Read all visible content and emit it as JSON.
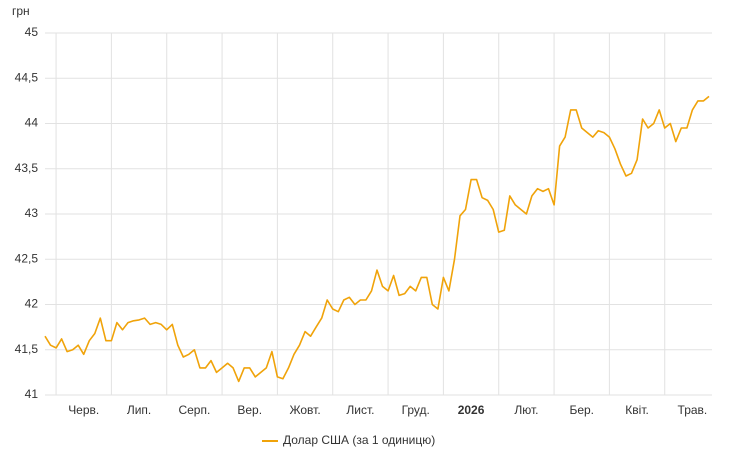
{
  "chart_data": {
    "type": "line",
    "y_label": "грн",
    "categories": [
      null,
      null,
      null,
      null,
      null,
      null,
      null,
      "Черв.",
      null,
      null,
      null,
      null,
      null,
      null,
      null,
      null,
      null,
      "Лип.",
      null,
      null,
      null,
      null,
      null,
      null,
      null,
      null,
      null,
      "Серп.",
      null,
      null,
      null,
      null,
      null,
      null,
      null,
      null,
      null,
      "Вер.",
      null,
      null,
      null,
      null,
      null,
      null,
      null,
      null,
      null,
      "Жовт.",
      null,
      null,
      null,
      null,
      null,
      null,
      null,
      null,
      null,
      "Лист.",
      null,
      null,
      null,
      null,
      null,
      null,
      null,
      null,
      null,
      "Груд.",
      null,
      null,
      null,
      null,
      null,
      null,
      null,
      null,
      null,
      "2026",
      null,
      null,
      null,
      null,
      null,
      null,
      null,
      null,
      null,
      "Лют.",
      null,
      null,
      null,
      null,
      null,
      null,
      null,
      null,
      null,
      "Бер.",
      null,
      null,
      null,
      null,
      null,
      null,
      null,
      null,
      null,
      "Квіт.",
      null,
      null,
      null,
      null,
      null,
      null,
      null,
      null,
      null,
      "Трав.",
      null,
      null,
      null
    ],
    "series": [
      {
        "name": "Долар США (за 1 одиницю)",
        "color": "#f0a30a",
        "values": [
          41.65,
          41.55,
          41.52,
          41.62,
          41.48,
          41.5,
          41.55,
          41.45,
          41.6,
          41.68,
          41.85,
          41.6,
          41.6,
          41.8,
          41.72,
          41.8,
          41.82,
          41.83,
          41.85,
          41.78,
          41.8,
          41.78,
          41.72,
          41.78,
          41.55,
          41.42,
          41.45,
          41.5,
          41.3,
          41.3,
          41.38,
          41.25,
          41.3,
          41.35,
          41.3,
          41.15,
          41.3,
          41.3,
          41.2,
          41.25,
          41.3,
          41.48,
          41.2,
          41.18,
          41.3,
          41.45,
          41.55,
          41.7,
          41.65,
          41.75,
          41.85,
          42.05,
          41.95,
          41.92,
          42.05,
          42.08,
          42.0,
          42.05,
          42.05,
          42.15,
          42.38,
          42.2,
          42.15,
          42.32,
          42.1,
          42.12,
          42.2,
          42.15,
          42.3,
          42.3,
          42.0,
          41.95,
          42.3,
          42.15,
          42.5,
          42.98,
          43.05,
          43.38,
          43.38,
          43.18,
          43.15,
          43.05,
          42.8,
          42.82,
          43.2,
          43.1,
          43.05,
          43.0,
          43.2,
          43.28,
          43.25,
          43.28,
          43.1,
          43.75,
          43.85,
          44.15,
          44.15,
          43.95,
          43.9,
          43.85,
          43.92,
          43.9,
          43.85,
          43.72,
          43.55,
          43.42,
          43.45,
          43.6,
          44.05,
          43.95,
          44.0,
          44.15,
          43.95,
          44.0,
          43.8,
          43.95,
          43.95,
          44.15,
          44.25,
          44.25,
          44.3
        ]
      }
    ],
    "ylim": [
      41,
      45
    ],
    "yticks": [
      41,
      {
        "value": 41.5,
        "label": "41,5"
      },
      42,
      {
        "value": 42.5,
        "label": "42,5"
      },
      43,
      {
        "value": 43.5,
        "label": "43,5"
      },
      44,
      {
        "value": 44.5,
        "label": "44,5"
      },
      45
    ],
    "grid": true,
    "legend": "bottom"
  }
}
